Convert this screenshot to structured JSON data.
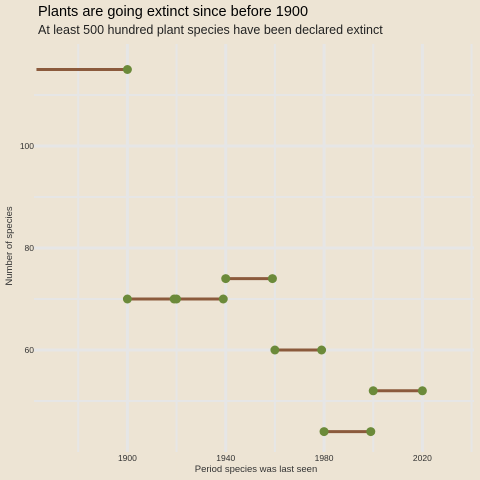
{
  "chart_data": {
    "type": "dumbbell",
    "title": "Plants are going extinct since before 1900",
    "subtitle": "At least 500 hundred plant species have been declared extinct",
    "xlabel": "Period species was last seen",
    "ylabel": "Number of species",
    "x_ticks": [
      1900,
      1940,
      1980,
      2020
    ],
    "y_ticks": [
      60,
      80,
      100
    ],
    "xlim": [
      1862,
      2041
    ],
    "ylim": [
      40,
      120
    ],
    "grid": true,
    "colors": {
      "background": "#ede4d4",
      "grid": "#e6e6e6",
      "segment": "#8b5a3c",
      "point": "#6b8a3a"
    },
    "segments": [
      {
        "x_start": 1863,
        "x_end": 1900,
        "y": 115
      },
      {
        "x_start": 1900,
        "x_end": 1919,
        "y": 70
      },
      {
        "x_start": 1920,
        "x_end": 1939,
        "y": 70
      },
      {
        "x_start": 1940,
        "x_end": 1959,
        "y": 74
      },
      {
        "x_start": 1960,
        "x_end": 1979,
        "y": 60
      },
      {
        "x_start": 1980,
        "x_end": 1999,
        "y": 44
      },
      {
        "x_start": 2000,
        "x_end": 2020,
        "y": 52
      }
    ]
  }
}
